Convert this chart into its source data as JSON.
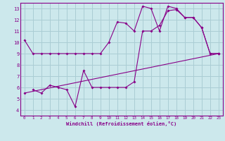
{
  "background_color": "#cce8ec",
  "grid_color": "#aacdd4",
  "line_color": "#880088",
  "xlabel": "Windchill (Refroidissement éolien,°C)",
  "xlim": [
    -0.5,
    23.5
  ],
  "ylim": [
    3.5,
    13.5
  ],
  "xticks": [
    0,
    1,
    2,
    3,
    4,
    5,
    6,
    7,
    8,
    9,
    10,
    11,
    12,
    13,
    14,
    15,
    16,
    17,
    18,
    19,
    20,
    21,
    22,
    23
  ],
  "yticks": [
    4,
    5,
    6,
    7,
    8,
    9,
    10,
    11,
    12,
    13
  ],
  "series": [
    {
      "x": [
        0,
        1,
        2,
        3,
        4,
        5,
        6,
        7,
        8,
        9,
        10,
        11,
        12,
        13,
        14,
        15,
        16,
        17,
        18,
        19,
        20,
        21,
        22,
        23
      ],
      "y": [
        10.2,
        9.0,
        9.0,
        9.0,
        9.0,
        9.0,
        9.0,
        9.0,
        9.0,
        9.0,
        10.0,
        11.8,
        11.7,
        11.0,
        13.2,
        13.0,
        11.0,
        13.2,
        13.0,
        12.2,
        12.2,
        11.3,
        9.0,
        9.0
      ]
    },
    {
      "x": [
        1,
        2,
        3,
        4,
        5,
        6,
        7,
        8,
        9,
        10,
        11,
        12,
        13,
        14,
        15,
        16,
        17,
        18,
        19,
        20,
        21,
        22,
        23
      ],
      "y": [
        5.8,
        5.5,
        6.2,
        6.0,
        5.8,
        4.3,
        7.5,
        6.0,
        6.0,
        6.0,
        6.0,
        6.0,
        6.5,
        11.0,
        11.0,
        11.5,
        12.8,
        12.9,
        12.2,
        12.2,
        11.3,
        9.0,
        9.0
      ]
    },
    {
      "x": [
        0,
        23
      ],
      "y": [
        5.5,
        9.0
      ]
    }
  ]
}
